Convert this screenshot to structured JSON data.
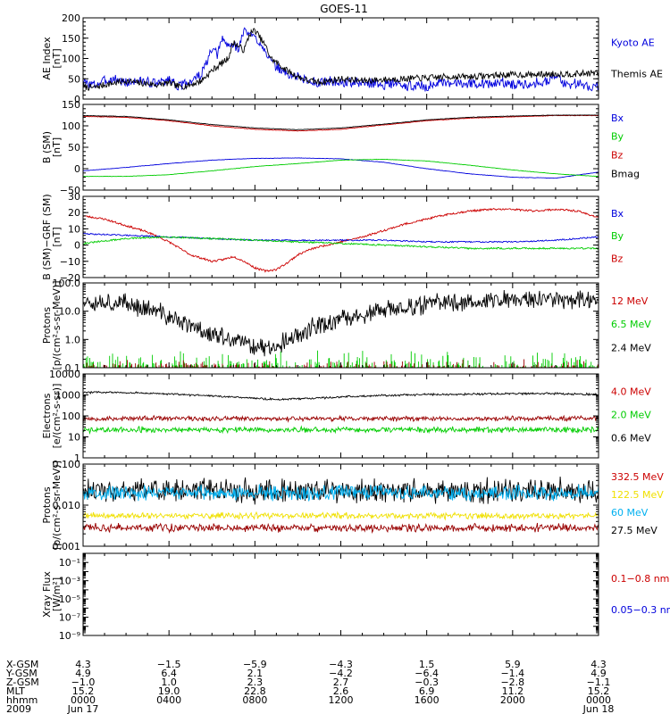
{
  "title": "GOES-11",
  "chart_data": [
    {
      "type": "line",
      "ylabel": [
        "AE Index",
        "[nT]"
      ],
      "ylim": [
        0,
        200
      ],
      "yscale": "linear",
      "yticks": [
        "0",
        "50",
        "100",
        "150",
        "200"
      ],
      "legend": [
        {
          "label": "Kyoto AE",
          "color": "#0000dd"
        },
        {
          "label": "Themis AE",
          "color": "#000000"
        }
      ],
      "series": [
        {
          "name": "Kyoto AE",
          "color": "#0000dd",
          "x": [
            0,
            0.5,
            1,
            1.5,
            2,
            2.5,
            3,
            3.5,
            4,
            4.5,
            5,
            5.5,
            6,
            6.25,
            6.5,
            6.75,
            7,
            7.25,
            7.5,
            7.75,
            8,
            8.25,
            8.5,
            8.75,
            9,
            9.25,
            9.5,
            10,
            10.5,
            11,
            11.5,
            12,
            12.5,
            13,
            13.5,
            14,
            14.5,
            15,
            15.5,
            16,
            16.5,
            17,
            17.5,
            18,
            18.5,
            19,
            19.5,
            20,
            20.5,
            21,
            21.5,
            22,
            22.5,
            23,
            23.5,
            24
          ],
          "y": [
            40,
            35,
            45,
            50,
            40,
            45,
            42,
            38,
            50,
            30,
            45,
            60,
            120,
            110,
            150,
            130,
            135,
            125,
            170,
            160,
            150,
            140,
            120,
            90,
            80,
            70,
            60,
            55,
            45,
            40,
            45,
            40,
            42,
            38,
            40,
            35,
            40,
            30,
            35,
            30,
            40,
            35,
            42,
            38,
            40,
            35,
            42,
            35,
            38,
            40,
            45,
            55,
            35,
            40,
            30,
            35
          ],
          "noise": 12,
          "seed": 3
        },
        {
          "name": "Themis AE",
          "color": "#000000",
          "x": [
            0,
            0.5,
            1,
            1.5,
            2,
            2.5,
            3,
            3.5,
            4,
            4.5,
            5,
            5.5,
            6,
            6.25,
            6.5,
            6.75,
            7,
            7.25,
            7.5,
            7.75,
            8,
            8.25,
            8.5,
            8.75,
            9,
            9.5,
            10,
            10.5,
            11,
            11.5,
            12,
            13,
            14,
            15,
            16,
            17,
            18,
            19,
            20,
            21,
            22,
            23,
            24
          ],
          "y": [
            30,
            28,
            35,
            40,
            45,
            40,
            38,
            35,
            40,
            30,
            35,
            45,
            70,
            80,
            90,
            100,
            140,
            130,
            120,
            160,
            170,
            150,
            130,
            100,
            90,
            70,
            55,
            45,
            42,
            45,
            50,
            45,
            48,
            50,
            52,
            55,
            55,
            58,
            60,
            60,
            62,
            62,
            65
          ],
          "noise": 8,
          "seed": 7
        }
      ]
    },
    {
      "type": "line",
      "ylabel": [
        "B (SM)",
        "[nT]"
      ],
      "ylim": [
        -50,
        150
      ],
      "yscale": "linear",
      "yticks": [
        "−50",
        "0",
        "50",
        "100",
        "150"
      ],
      "legend": [
        {
          "label": "Bx",
          "color": "#0000dd"
        },
        {
          "label": "By",
          "color": "#00cc00"
        },
        {
          "label": "Bz",
          "color": "#cc0000"
        },
        {
          "label": "Bmag",
          "color": "#000000"
        }
      ],
      "series": [
        {
          "name": "Bz",
          "color": "#cc0000",
          "x": [
            0,
            2,
            4,
            6,
            8,
            10,
            12,
            14,
            16,
            18,
            20,
            22,
            24
          ],
          "y": [
            122,
            120,
            112,
            100,
            92,
            88,
            92,
            102,
            112,
            118,
            121,
            124,
            124
          ],
          "noise": 0.6,
          "seed": 11
        },
        {
          "name": "Bmag",
          "color": "#000000",
          "x": [
            0,
            2,
            4,
            6,
            8,
            10,
            12,
            14,
            16,
            18,
            20,
            22,
            24
          ],
          "y": [
            124,
            122,
            114,
            103,
            95,
            91,
            95,
            104,
            114,
            120,
            123,
            125,
            125
          ],
          "noise": 0.4,
          "seed": 13
        },
        {
          "name": "Bx",
          "color": "#0000dd",
          "x": [
            0,
            2,
            4,
            6,
            8,
            10,
            12,
            14,
            16,
            18,
            20,
            22,
            24
          ],
          "y": [
            -5,
            3,
            12,
            20,
            24,
            25,
            23,
            15,
            0,
            -12,
            -20,
            -22,
            -8
          ],
          "noise": 0.4,
          "seed": 17
        },
        {
          "name": "By",
          "color": "#00cc00",
          "x": [
            0,
            2,
            4,
            6,
            8,
            10,
            12,
            14,
            16,
            18,
            20,
            22,
            24
          ],
          "y": [
            -18,
            -18,
            -14,
            -5,
            5,
            12,
            20,
            22,
            18,
            8,
            -3,
            -12,
            -18
          ],
          "noise": 0.4,
          "seed": 19
        }
      ]
    },
    {
      "type": "line",
      "ylabel": [
        "B (SM)−GRF (SM)",
        "[nT]"
      ],
      "ylim": [
        -20,
        30
      ],
      "yscale": "linear",
      "yticks": [
        "−20",
        "−10",
        "0",
        "10",
        "20",
        "30"
      ],
      "legend": [
        {
          "label": "Bx",
          "color": "#0000dd"
        },
        {
          "label": "By",
          "color": "#00cc00"
        },
        {
          "label": "Bz",
          "color": "#cc0000"
        }
      ],
      "series": [
        {
          "name": "Bz",
          "color": "#cc0000",
          "x": [
            0,
            1,
            2,
            3,
            4,
            5,
            6,
            6.5,
            7,
            7.5,
            8,
            8.5,
            9,
            9.5,
            10,
            10.5,
            11,
            12,
            13,
            14,
            15,
            16,
            17,
            18,
            19,
            20,
            21,
            22,
            23,
            24
          ],
          "y": [
            18,
            16,
            12,
            8,
            2,
            -6,
            -10,
            -9,
            -7,
            -10,
            -14,
            -16,
            -15,
            -11,
            -6,
            -3,
            -1,
            2,
            5,
            9,
            13,
            16,
            19,
            21,
            22,
            22,
            21,
            22,
            21,
            17
          ],
          "noise": 0.6,
          "seed": 23
        },
        {
          "name": "Bx",
          "color": "#0000dd",
          "x": [
            0,
            2,
            4,
            6,
            8,
            10,
            12,
            14,
            16,
            18,
            20,
            22,
            24
          ],
          "y": [
            7,
            6,
            5,
            4,
            3,
            3,
            3,
            3,
            2,
            2,
            2,
            3,
            5
          ],
          "noise": 0.4,
          "seed": 29
        },
        {
          "name": "By",
          "color": "#00cc00",
          "x": [
            0,
            2,
            4,
            6,
            8,
            10,
            12,
            14,
            16,
            18,
            20,
            22,
            24
          ],
          "y": [
            1,
            4,
            5,
            4,
            3,
            2,
            1,
            0,
            -1,
            -2,
            -2,
            -2,
            -2
          ],
          "noise": 0.5,
          "seed": 31
        }
      ]
    },
    {
      "type": "line",
      "ylabel": [
        "Protons",
        "[p/(cm²-s-sr-MeV)]"
      ],
      "ylim": [
        0.1,
        100
      ],
      "yscale": "log",
      "yticks": [
        "0.1",
        "1.0",
        "10.0",
        "100.0"
      ],
      "legend": [
        {
          "label": "12 MeV",
          "color": "#cc0000"
        },
        {
          "label": "6.5 MeV",
          "color": "#00cc00"
        },
        {
          "label": "2.4 MeV",
          "color": "#000000"
        }
      ],
      "series": [
        {
          "name": "2.4 MeV",
          "color": "#000000",
          "x": [
            0,
            1,
            2,
            3,
            4,
            5,
            6,
            7,
            8,
            8.5,
            9,
            9.5,
            10,
            11,
            12,
            13,
            14,
            15,
            16,
            17,
            18,
            19,
            20,
            21,
            22,
            23,
            24
          ],
          "y": [
            25,
            22,
            18,
            12,
            6,
            3,
            1.5,
            0.9,
            0.6,
            0.5,
            0.6,
            0.9,
            1.5,
            3,
            5,
            7,
            10,
            14,
            17,
            20,
            22,
            24,
            26,
            27,
            28,
            27,
            25
          ],
          "noise": 0.35,
          "log": true,
          "seed": 37
        },
        {
          "name": "6.5 MeV",
          "color": "#00cc00",
          "spikes": true,
          "base": 0.1,
          "max": 0.45,
          "density": 0.45,
          "seed": 41
        },
        {
          "name": "12 MeV",
          "color": "#990000",
          "spikes": true,
          "base": 0.1,
          "max": 0.22,
          "density": 0.3,
          "seed": 43
        }
      ]
    },
    {
      "type": "line",
      "ylabel": [
        "Electrons",
        "[e/(cm²-s-sr)]"
      ],
      "ylim": [
        1,
        10000
      ],
      "yscale": "log",
      "yticks": [
        "1",
        "10",
        "100",
        "1000",
        "10000"
      ],
      "legend": [
        {
          "label": "4.0 MeV",
          "color": "#cc0000"
        },
        {
          "label": "2.0 MeV",
          "color": "#00cc00"
        },
        {
          "label": "0.6 MeV",
          "color": "#000000"
        }
      ],
      "series": [
        {
          "name": "0.6 MeV",
          "color": "#000000",
          "x": [
            0,
            2,
            4,
            6,
            8,
            9,
            10,
            12,
            14,
            16,
            18,
            20,
            22,
            24
          ],
          "y": [
            1350,
            1300,
            1100,
            900,
            700,
            600,
            650,
            800,
            950,
            1050,
            1100,
            1150,
            1150,
            1050
          ],
          "noise": 0.05,
          "log": true,
          "seed": 47
        },
        {
          "name": "4.0 MeV",
          "color": "#990000",
          "x": [
            0,
            24
          ],
          "y": [
            75,
            75
          ],
          "noise": 0.12,
          "log": true,
          "seed": 53
        },
        {
          "name": "2.0 MeV",
          "color": "#00cc00",
          "x": [
            0,
            24
          ],
          "y": [
            22,
            22
          ],
          "noise": 0.14,
          "log": true,
          "seed": 59
        }
      ]
    },
    {
      "type": "line",
      "ylabel": [
        "Protons",
        "[p/(cm²-s-sr-MeV)]"
      ],
      "ylim": [
        0.001,
        0.1
      ],
      "yscale": "log",
      "yticks": [
        "0.001",
        "0.010",
        "0.100"
      ],
      "legend": [
        {
          "label": "332.5 MeV",
          "color": "#cc0000"
        },
        {
          "label": "122.5 MeV",
          "color": "#f0e000"
        },
        {
          "label": "60 MeV",
          "color": "#00b0f0"
        },
        {
          "label": "27.5 MeV",
          "color": "#000000"
        }
      ],
      "series": [
        {
          "name": "27.5 MeV",
          "color": "#000000",
          "x": [
            0,
            24
          ],
          "y": [
            0.022,
            0.022
          ],
          "noise": 0.3,
          "log": true,
          "seed": 61
        },
        {
          "name": "60 MeV",
          "color": "#00b0f0",
          "x": [
            0,
            24
          ],
          "y": [
            0.02,
            0.02
          ],
          "noise": 0.18,
          "log": true,
          "seed": 67
        },
        {
          "name": "122.5 MeV",
          "color": "#f0e000",
          "x": [
            0,
            24
          ],
          "y": [
            0.0055,
            0.0055
          ],
          "noise": 0.08,
          "log": true,
          "seed": 71
        },
        {
          "name": "332.5 MeV",
          "color": "#990000",
          "x": [
            0,
            24
          ],
          "y": [
            0.0028,
            0.0028
          ],
          "noise": 0.1,
          "log": true,
          "seed": 73
        }
      ]
    },
    {
      "type": "line",
      "ylabel": [
        "Xray Flux",
        "[W/m²]"
      ],
      "ylim": [
        1e-09,
        1
      ],
      "yscale": "log",
      "yticks": [
        "10⁻⁹",
        "10⁻⁸",
        "10⁻⁷",
        "10⁻⁶",
        "10⁻⁵",
        "10⁻⁴",
        "10⁻³",
        "10⁻²",
        "10⁻¹",
        "10⁰"
      ],
      "yticks_labeled_every": 2,
      "legend": [
        {
          "label": "0.1−0.8 nm",
          "color": "#cc0000"
        },
        {
          "label": "0.05−0.3 nm",
          "color": "#0000dd"
        }
      ],
      "series": []
    }
  ],
  "xaxis": {
    "range_hours": [
      0,
      24
    ],
    "tick_hours": [
      0,
      4,
      8,
      12,
      16,
      20,
      24
    ],
    "rows": [
      {
        "label": "X-GSM",
        "values": [
          "4.3",
          "−1.5",
          "−5.9",
          "−4.3",
          "1.5",
          "5.9",
          "4.3"
        ]
      },
      {
        "label": "Y-GSM",
        "values": [
          "4.9",
          "6.4",
          "2.1",
          "−4.2",
          "−6.4",
          "−1.4",
          "4.9"
        ]
      },
      {
        "label": "Z-GSM",
        "values": [
          "−1.0",
          "1.0",
          "2.3",
          "2.7",
          "−0.3",
          "−2.8",
          "−1.1"
        ]
      },
      {
        "label": "MLT",
        "values": [
          "15.2",
          "19.0",
          "22.8",
          "2.6",
          "6.9",
          "11.2",
          "15.2"
        ]
      },
      {
        "label": "hhmm",
        "values": [
          "0000",
          "0400",
          "0800",
          "1200",
          "1600",
          "2000",
          "0000"
        ]
      },
      {
        "label": "2009",
        "values": [
          "Jun 17",
          "",
          "",
          "",
          "",
          "",
          "Jun 18"
        ]
      }
    ]
  }
}
